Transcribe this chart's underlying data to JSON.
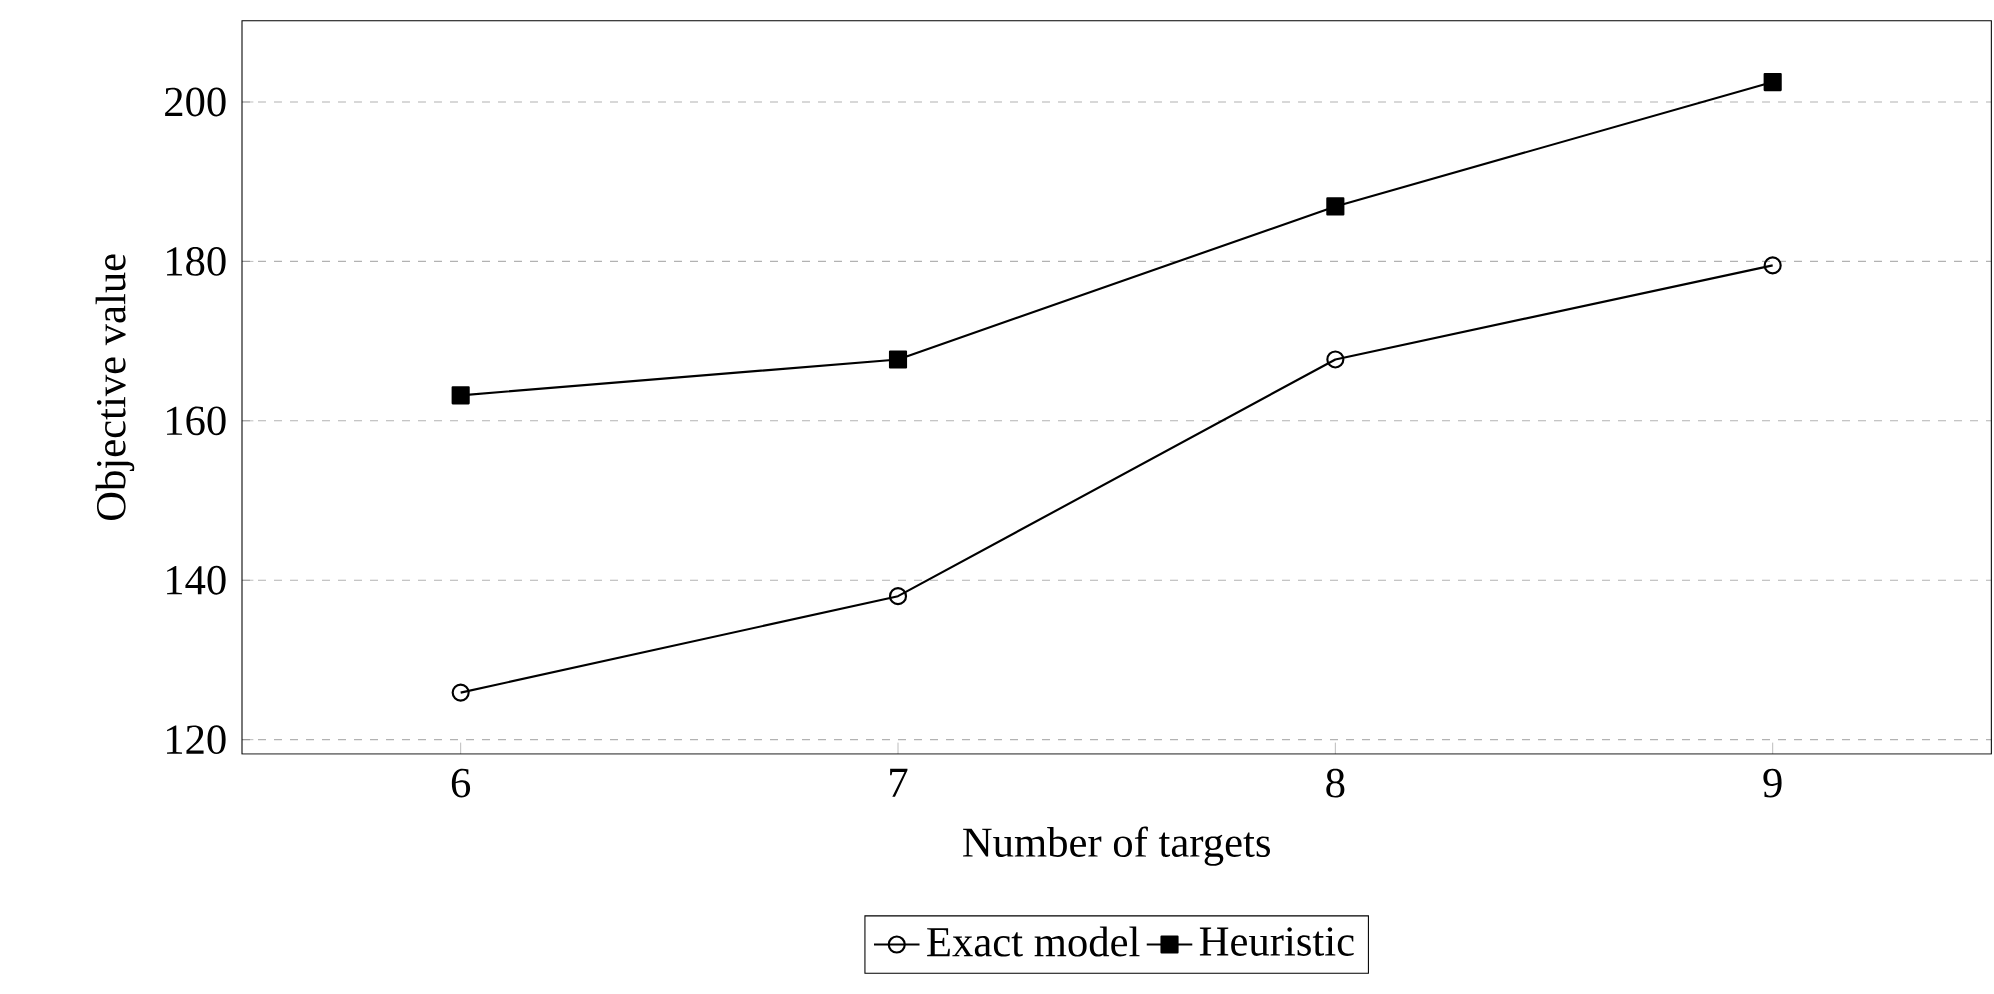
{
  "chart_data": {
    "type": "line",
    "xlabel": "Number of targets",
    "ylabel": "Objective value",
    "x": [
      6,
      7,
      8,
      9
    ],
    "xlim": [
      5.5,
      9.5
    ],
    "xticks": [
      6,
      7,
      8,
      9
    ],
    "ylim": [
      118.2,
      210.2
    ],
    "yticks": [
      120,
      140,
      160,
      180,
      200
    ],
    "grid": "y",
    "legend": "bottom",
    "line_style": "solid",
    "series": [
      {
        "name": "Exact model",
        "color": "#000000",
        "marker": "circle",
        "values": [
          125.9,
          138,
          167.7,
          179.5
        ]
      },
      {
        "name": "Heuristic",
        "color": "#000000",
        "marker": "square",
        "values": [
          163.2,
          167.7,
          186.9,
          202.5
        ]
      }
    ]
  }
}
